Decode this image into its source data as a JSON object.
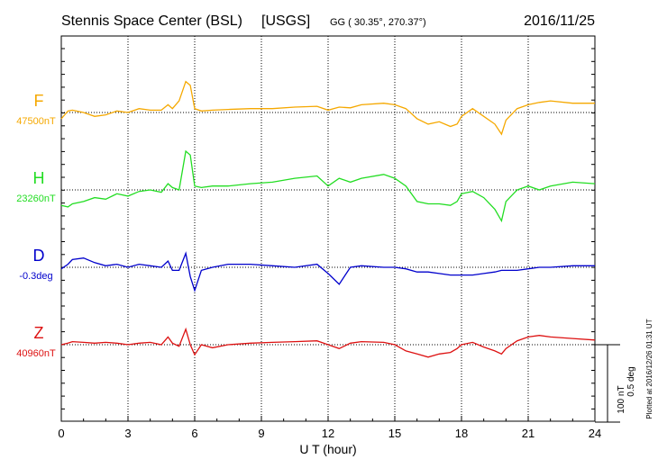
{
  "chart_data": {
    "type": "line",
    "title": {
      "station": "Stennis Space Center (BSL)",
      "source": "[USGS]",
      "coords": "GG ( 30.35°, 270.37°)",
      "date": "2016/11/25"
    },
    "xlabel": "U T (hour)",
    "xlim": [
      0,
      24
    ],
    "xticks": [
      "0",
      "3",
      "6",
      "9",
      "12",
      "15",
      "18",
      "21",
      "24"
    ],
    "grid": true,
    "scale_bar": {
      "nt_label": "100 nT",
      "deg_label": "0.5 deg"
    },
    "plotted_note": "Plotted at 2016/12/26 01:31  UT",
    "series": [
      {
        "name": "F",
        "baseline_label": "47500nT",
        "color": "#f5a800",
        "units": "nT",
        "baseline": 47500,
        "x": [
          0,
          0.3,
          0.5,
          1,
          1.5,
          2,
          2.5,
          3,
          3.5,
          4,
          4.5,
          4.8,
          5,
          5.3,
          5.6,
          5.8,
          6,
          6.3,
          6.8,
          7.5,
          8.5,
          9.5,
          10.5,
          11.5,
          12,
          12.5,
          13,
          13.5,
          14.5,
          15,
          15.5,
          16,
          16.5,
          17,
          17.5,
          17.8,
          18,
          18.5,
          19,
          19.5,
          19.8,
          20,
          20.5,
          21,
          21.5,
          22,
          23,
          24
        ],
        "values": [
          -8,
          2,
          3,
          0,
          -5,
          -3,
          2,
          0,
          5,
          3,
          3,
          10,
          5,
          15,
          40,
          35,
          5,
          2,
          3,
          4,
          5,
          5,
          7,
          8,
          3,
          7,
          6,
          10,
          12,
          10,
          5,
          -8,
          -15,
          -12,
          -18,
          -15,
          -5,
          5,
          -5,
          -15,
          -28,
          -10,
          5,
          10,
          13,
          15,
          12,
          12
        ]
      },
      {
        "name": "H",
        "baseline_label": "23260nT",
        "color": "#22dd22",
        "units": "nT",
        "baseline": 23260,
        "x": [
          0,
          0.3,
          0.5,
          1,
          1.5,
          2,
          2.5,
          3,
          3.5,
          4,
          4.5,
          4.8,
          5,
          5.3,
          5.6,
          5.8,
          6,
          6.3,
          6.8,
          7.5,
          8.5,
          9.5,
          10.5,
          11.5,
          12,
          12.5,
          13,
          13.5,
          14.5,
          15,
          15.5,
          16,
          16.5,
          17,
          17.5,
          17.8,
          18,
          18.5,
          19,
          19.5,
          19.8,
          20,
          20.5,
          21,
          21.5,
          22,
          23,
          24
        ],
        "values": [
          -20,
          -22,
          -18,
          -15,
          -10,
          -12,
          -5,
          -8,
          -2,
          0,
          -3,
          8,
          3,
          0,
          50,
          45,
          5,
          3,
          5,
          5,
          8,
          10,
          15,
          18,
          5,
          15,
          10,
          15,
          20,
          15,
          5,
          -15,
          -18,
          -18,
          -20,
          -15,
          -5,
          -2,
          -10,
          -25,
          -40,
          -15,
          0,
          5,
          0,
          5,
          10,
          8
        ]
      },
      {
        "name": "D",
        "baseline_label": "-0.3deg",
        "color": "#0000cc",
        "units": "deg",
        "baseline": -0.3,
        "x": [
          0,
          0.3,
          0.5,
          1,
          1.5,
          2,
          2.5,
          3,
          3.5,
          4,
          4.5,
          4.8,
          5,
          5.3,
          5.6,
          5.8,
          6,
          6.3,
          6.8,
          7.5,
          8.5,
          9.5,
          10.5,
          11.5,
          12,
          12.5,
          13,
          13.5,
          14.5,
          15,
          15.5,
          16,
          16.5,
          17,
          17.5,
          17.8,
          18,
          18.5,
          19,
          19.5,
          19.8,
          20,
          20.5,
          21,
          21.5,
          22,
          23,
          24
        ],
        "values": [
          -0.01,
          0.02,
          0.05,
          0.06,
          0.03,
          0.01,
          0.02,
          0.0,
          0.02,
          0.01,
          0.0,
          0.04,
          -0.02,
          -0.02,
          0.09,
          -0.06,
          -0.15,
          -0.02,
          0.0,
          0.02,
          0.02,
          0.01,
          0.0,
          0.02,
          -0.04,
          -0.11,
          0.0,
          0.01,
          0.0,
          0.0,
          -0.01,
          -0.03,
          -0.03,
          -0.04,
          -0.05,
          -0.05,
          -0.05,
          -0.05,
          -0.04,
          -0.03,
          -0.02,
          -0.02,
          -0.02,
          -0.01,
          0.0,
          0.0,
          0.01,
          0.01
        ]
      },
      {
        "name": "Z",
        "baseline_label": "40960nT",
        "color": "#dd1111",
        "units": "nT",
        "baseline": 40960,
        "x": [
          0,
          0.3,
          0.5,
          1,
          1.5,
          2,
          2.5,
          3,
          3.5,
          4,
          4.5,
          4.8,
          5,
          5.3,
          5.6,
          5.8,
          6,
          6.3,
          6.8,
          7.5,
          8.5,
          9.5,
          10.5,
          11.5,
          12,
          12.5,
          13,
          13.5,
          14.5,
          15,
          15.5,
          16,
          16.5,
          17,
          17.5,
          17.8,
          18,
          18.5,
          19,
          19.5,
          19.8,
          20,
          20.5,
          21,
          21.5,
          22,
          23,
          24
        ],
        "values": [
          0,
          2,
          4,
          3,
          2,
          3,
          2,
          0,
          2,
          3,
          0,
          10,
          2,
          -2,
          20,
          0,
          -13,
          0,
          -4,
          0,
          2,
          3,
          4,
          5,
          0,
          -5,
          2,
          4,
          3,
          0,
          -8,
          -12,
          -16,
          -12,
          -10,
          -5,
          0,
          3,
          -3,
          -8,
          -12,
          -5,
          5,
          10,
          12,
          10,
          8,
          6
        ]
      }
    ]
  }
}
